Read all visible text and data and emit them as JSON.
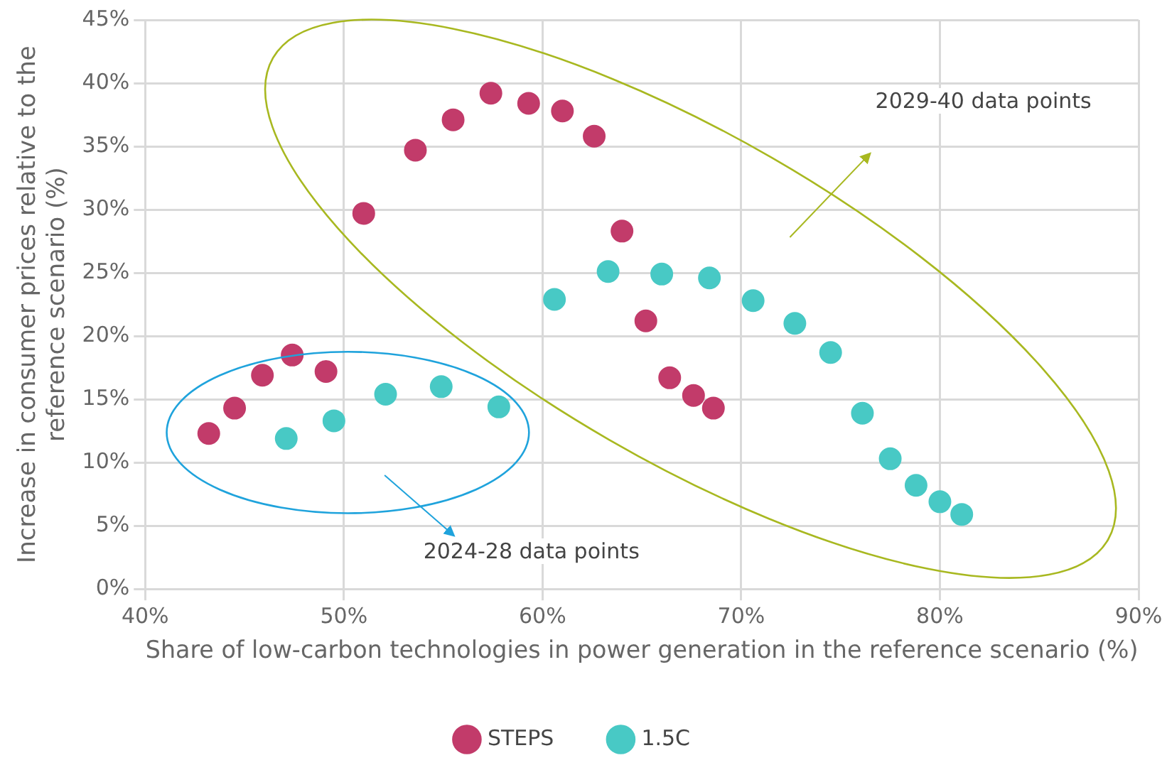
{
  "chart_data": {
    "type": "scatter",
    "xlabel": "Share of low-carbon technologies in power generation in the reference scenario (%)",
    "ylabel": "Increase in consumer prices relative to the reference scenario (%)",
    "xlim": [
      40,
      90
    ],
    "xticks": [
      {
        "value": 40,
        "label": "40%"
      },
      {
        "value": 50,
        "label": "50%"
      },
      {
        "value": 60,
        "label": "60%"
      },
      {
        "value": 70,
        "label": "70%"
      },
      {
        "value": 80,
        "label": "80%"
      },
      {
        "value": 90,
        "label": "90%"
      }
    ],
    "ylim": [
      0,
      45
    ],
    "yticks": [
      {
        "value": 0,
        "label": "0%"
      },
      {
        "value": 5,
        "label": "5%"
      },
      {
        "value": 10,
        "label": "10%"
      },
      {
        "value": 15,
        "label": "15%"
      },
      {
        "value": 20,
        "label": "20%"
      },
      {
        "value": 25,
        "label": "25%"
      },
      {
        "value": 30,
        "label": "30%"
      },
      {
        "value": 35,
        "label": "35%"
      },
      {
        "value": 40,
        "label": "40%"
      },
      {
        "value": 45,
        "label": "45%"
      }
    ],
    "grid": true,
    "legend": "bottom",
    "marker": "circle",
    "annotations": [
      "2029-40 data points",
      "2024-28 data points"
    ],
    "series": [
      {
        "name": "STEPS",
        "color": "#c23b6a",
        "x": [
          43.2,
          44.5,
          45.9,
          47.4,
          49.1,
          51.0,
          53.6,
          55.5,
          57.4,
          59.3,
          61.0,
          62.6,
          64.0,
          65.2,
          66.4,
          67.6,
          68.6
        ],
        "values": [
          12.3,
          14.3,
          16.9,
          18.5,
          17.2,
          29.7,
          34.7,
          37.1,
          39.2,
          38.4,
          37.8,
          35.8,
          28.3,
          21.2,
          16.7,
          15.3,
          14.3
        ]
      },
      {
        "name": "1.5C",
        "color": "#48c9c5",
        "x": [
          47.1,
          49.5,
          52.1,
          54.9,
          57.8,
          60.6,
          63.3,
          66.0,
          68.4,
          70.6,
          72.7,
          74.5,
          76.1,
          77.5,
          78.8,
          80.0,
          81.1
        ],
        "values": [
          11.9,
          13.3,
          15.4,
          16.0,
          14.4,
          22.9,
          25.1,
          24.9,
          24.6,
          22.8,
          21.0,
          18.7,
          13.9,
          10.3,
          8.2,
          6.9,
          5.9
        ]
      }
    ]
  }
}
